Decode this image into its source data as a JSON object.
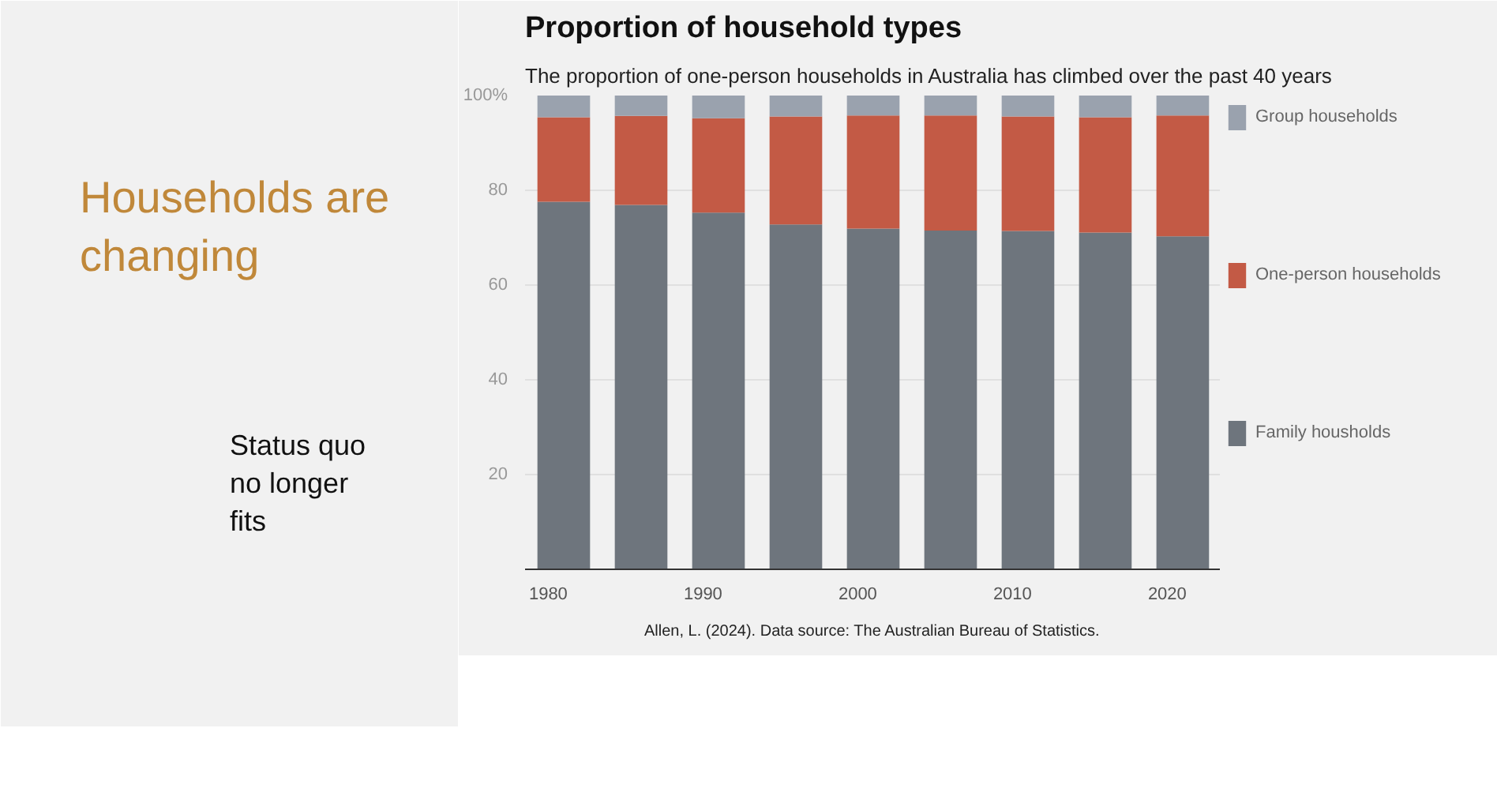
{
  "chart_data": {
    "type": "bar",
    "stacked": true,
    "title": "Proportion of household types",
    "subtitle": "The proportion of one-person households in Australia has climbed over the past 40 years",
    "x": [
      1981,
      1986,
      1991,
      1996,
      2001,
      2006,
      2011,
      2016,
      2021
    ],
    "series": [
      {
        "name": "Family housholds",
        "color": "#6e757d",
        "values": [
          77.6,
          76.9,
          75.3,
          72.8,
          71.9,
          71.5,
          71.4,
          71.1,
          70.3
        ]
      },
      {
        "name": "One-person households",
        "color": "#c35a45",
        "values": [
          17.8,
          18.8,
          19.9,
          22.8,
          23.9,
          24.3,
          24.2,
          24.3,
          25.5
        ]
      },
      {
        "name": "Group households",
        "color": "#9aa2ae",
        "values": [
          4.6,
          4.3,
          4.8,
          4.4,
          4.2,
          4.2,
          4.4,
          4.6,
          4.2
        ]
      }
    ],
    "xlim": [
      1978.5,
      2023.4
    ],
    "xticks": [
      1980,
      1990,
      2000,
      2010,
      2020
    ],
    "ylim": [
      0,
      100
    ],
    "yticks": [
      20,
      40,
      60,
      80,
      {
        "value": 100,
        "label": "100%"
      }
    ],
    "grid": "y",
    "legend": "right",
    "annotations": [
      "Households are changing",
      "Status quo no longer fits",
      "Allen, L. (2024). Data source: The Australian Bureau of Statistics."
    ]
  }
}
